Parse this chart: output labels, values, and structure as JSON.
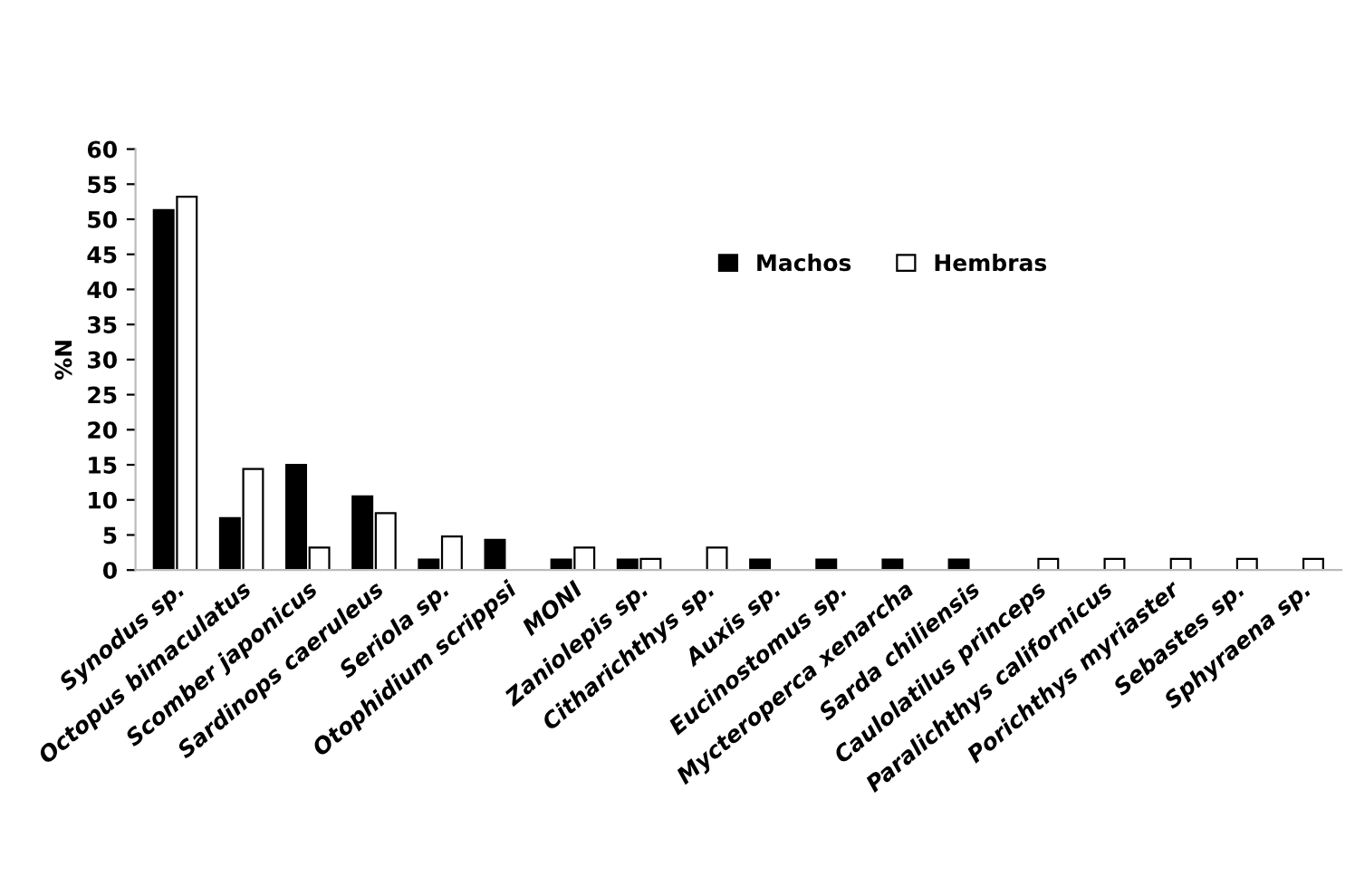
{
  "chart_data": {
    "type": "bar",
    "ylabel": "%N",
    "categories": [
      "Synodus sp.",
      "Octopus bimaculatus",
      "Scomber japonicus",
      "Sardinops caeruleus",
      "Seriola sp.",
      "Otophidium scrippsi",
      "MONI",
      "Zaniolepis sp.",
      "Citharichthys sp.",
      "Auxis sp.",
      "Eucinostomus sp.",
      "Mycteroperca xenarcha",
      "Sarda chiliensis",
      "Caulolatilus princeps",
      "Paralichthys californicus",
      "Porichthys myriaster",
      "Sebastes sp.",
      "Sphyraena sp."
    ],
    "series": [
      {
        "name": "Machos",
        "color": "#000000",
        "values": [
          51.3,
          7.4,
          15,
          10.5,
          1.5,
          4.3,
          1.5,
          1.5,
          null,
          1.5,
          1.5,
          1.5,
          1.5,
          null,
          null,
          null,
          null,
          null
        ]
      },
      {
        "name": "Hembras",
        "color": "#ffffff",
        "values": [
          53.2,
          14.4,
          3.2,
          8.1,
          4.8,
          null,
          3.2,
          1.6,
          3.2,
          null,
          null,
          null,
          null,
          1.6,
          1.6,
          1.6,
          1.6,
          1.6
        ]
      }
    ],
    "ylim": [
      0,
      60
    ],
    "yticks": [
      0,
      5,
      10,
      15,
      20,
      25,
      30,
      35,
      40,
      45,
      50,
      55,
      60
    ],
    "grid": false,
    "legend": "top right"
  }
}
